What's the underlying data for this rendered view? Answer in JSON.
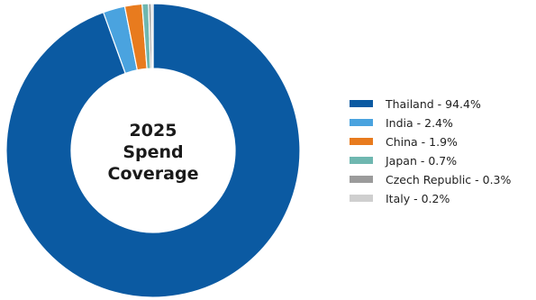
{
  "chart_data": {
    "type": "pie",
    "variant": "donut",
    "center_label": [
      "2025",
      "Spend",
      "Coverage"
    ],
    "slices": [
      {
        "label": "Thailand - 94.4%",
        "value": 94.4,
        "color": "#0b5aa2"
      },
      {
        "label": "India - 2.4%",
        "value": 2.4,
        "color": "#4aa3df"
      },
      {
        "label": "China - 1.9%",
        "value": 1.9,
        "color": "#e87b1e"
      },
      {
        "label": "Japan - 0.7%",
        "value": 0.7,
        "color": "#6fb7b0"
      },
      {
        "label": "Czech Republic - 0.3%",
        "value": 0.3,
        "color": "#9b9b9b"
      },
      {
        "label": "Italy - 0.2%",
        "value": 0.2,
        "color": "#cfcfcf"
      }
    ],
    "legend_position": "right"
  }
}
